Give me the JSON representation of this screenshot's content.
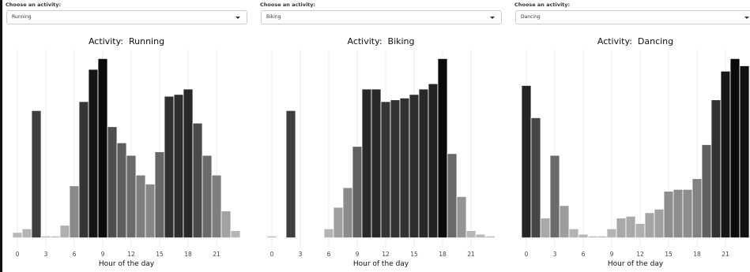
{
  "controls": [
    {
      "label": "Choose an activity:",
      "selected": "Running"
    },
    {
      "label": "Choose an activity:",
      "selected": "Biking"
    },
    {
      "label": "Choose an activity:",
      "selected": "Dancing"
    }
  ],
  "chart_data": [
    {
      "type": "bar",
      "title": "Activity:  Running",
      "x_label": "Hour of the day",
      "x": [
        0,
        1,
        2,
        3,
        4,
        5,
        6,
        7,
        8,
        9,
        10,
        11,
        12,
        13,
        14,
        15,
        16,
        17,
        18,
        19,
        20,
        21,
        22,
        23
      ],
      "values": [
        3,
        5,
        71,
        1,
        1,
        7,
        29,
        76,
        94,
        100,
        62,
        53,
        46,
        35,
        30,
        48,
        79,
        80,
        83,
        64,
        46,
        35,
        15,
        4
      ],
      "xlim": [
        -1,
        24
      ],
      "xticks": [
        0,
        3,
        6,
        9,
        12,
        15,
        18,
        21
      ],
      "ylim": [
        -5,
        105
      ],
      "fill_low": "#bdbdbd",
      "fill_high": "#0a0a0a",
      "grid": true
    },
    {
      "type": "bar",
      "title": "Activity:  Biking",
      "x_label": "Hour of the day",
      "x": [
        0,
        1,
        2,
        3,
        4,
        5,
        6,
        7,
        8,
        9,
        10,
        11,
        12,
        13,
        14,
        15,
        16,
        17,
        18,
        19,
        20,
        21,
        22,
        23
      ],
      "values": [
        1,
        0,
        71,
        0,
        0,
        0,
        5,
        17,
        28,
        51,
        83,
        83,
        76,
        77,
        78,
        80,
        83,
        86,
        100,
        47,
        23,
        4,
        2,
        1
      ],
      "xlim": [
        -1,
        24
      ],
      "xticks": [
        0,
        3,
        6,
        9,
        12,
        15,
        18,
        21
      ],
      "ylim": [
        -5,
        105
      ],
      "fill_low": "#bdbdbd",
      "fill_high": "#0a0a0a",
      "grid": true
    },
    {
      "type": "bar",
      "title": "Activity:  Dancing",
      "x_label": "Hour of the day",
      "x": [
        0,
        1,
        2,
        3,
        4,
        5,
        6,
        7,
        8,
        9,
        10,
        11,
        12,
        13,
        14,
        15,
        16,
        17,
        18,
        19,
        20,
        21,
        22,
        23
      ],
      "values": [
        85,
        67,
        11,
        46,
        18,
        5,
        2,
        1,
        1,
        5,
        11,
        12,
        8,
        14,
        16,
        26,
        27,
        27,
        33,
        52,
        77,
        93,
        100,
        96
      ],
      "xlim": [
        -1,
        24
      ],
      "xticks": [
        0,
        3,
        6,
        9,
        12,
        15,
        18,
        21
      ],
      "ylim": [
        -5,
        105
      ],
      "fill_low": "#bdbdbd",
      "fill_high": "#0a0a0a",
      "grid": true
    }
  ]
}
